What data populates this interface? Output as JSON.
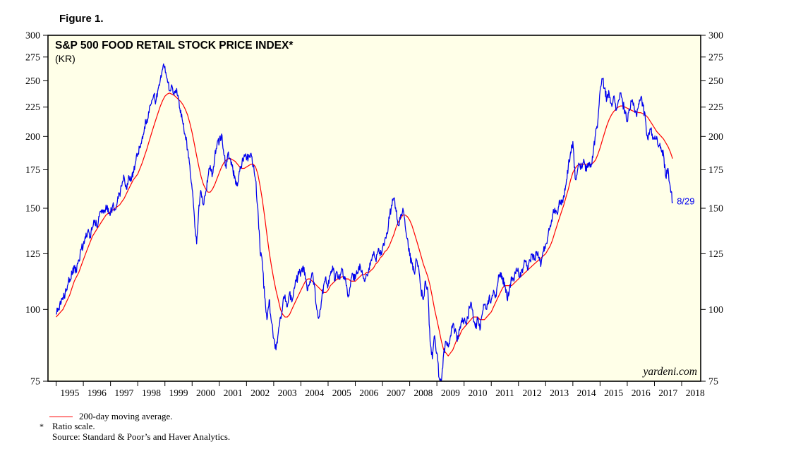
{
  "figure_label": "Figure 1.",
  "chart": {
    "title": "S&P 500 FOOD RETAIL STOCK PRICE INDEX*",
    "subtitle": "(KR)",
    "watermark": "yardeni.com",
    "annotation_label": "8/29",
    "colors": {
      "price": "#0000ee",
      "moving_average": "#ff0000",
      "plot_background": "#ffffe8",
      "frame": "#000000",
      "annotation": "#0000ee",
      "tick_text": "#000000"
    }
  },
  "chart_data": {
    "type": "line",
    "title": "S&P 500 FOOD RETAIL STOCK PRICE INDEX* (KR)",
    "y_scale": "log",
    "y_scale_note": "Ratio scale",
    "ylim": [
      75,
      300
    ],
    "y_ticks": [
      75,
      100,
      125,
      150,
      175,
      200,
      225,
      250,
      275,
      300
    ],
    "x_ticks": [
      1995,
      1996,
      1997,
      1998,
      1999,
      2000,
      2001,
      2002,
      2003,
      2004,
      2005,
      2006,
      2007,
      2008,
      2009,
      2010,
      2011,
      2012,
      2013,
      2014,
      2015,
      2016,
      2017,
      2018
    ],
    "x_start": 1995.0,
    "x_end": 2017.667,
    "points_per_year": 12,
    "last_point_label": "8/29",
    "last_point_value": 154,
    "grid": false,
    "legend_position": "below-left",
    "series": [
      {
        "name": "S&P 500 Food Retail stock price index (daily close)",
        "color": "#0000ee",
        "start_year": 1995,
        "values_by_year": [
          [
            98,
            100,
            102,
            104,
            107,
            110,
            113,
            115,
            118,
            116,
            122,
            127
          ],
          [
            130,
            133,
            137,
            134,
            139,
            143,
            139,
            145,
            149,
            147,
            152,
            150
          ],
          [
            147,
            152,
            149,
            154,
            159,
            164,
            170,
            162,
            171,
            167,
            174,
            180
          ],
          [
            186,
            192,
            200,
            208,
            214,
            220,
            228,
            236,
            230,
            242,
            252,
            262
          ],
          [
            265,
            252,
            240,
            246,
            236,
            240,
            232,
            222,
            210,
            200,
            190,
            178
          ],
          [
            162,
            145,
            130,
            152,
            160,
            152,
            160,
            170,
            178,
            172,
            184,
            194
          ],
          [
            196,
            202,
            186,
            176,
            188,
            182,
            175,
            169,
            164,
            174,
            180,
            186
          ],
          [
            182,
            186,
            187,
            178,
            168,
            150,
            126,
            120,
            105,
            96,
            104,
            95
          ],
          [
            89,
            85,
            91,
            97,
            102,
            106,
            101,
            107,
            103,
            109,
            112,
            115
          ],
          [
            116,
            119,
            113,
            108,
            112,
            116,
            110,
            100,
            97,
            103,
            110,
            114
          ],
          [
            110,
            115,
            119,
            112,
            116,
            113,
            118,
            114,
            110,
            106,
            112,
            115
          ],
          [
            113,
            116,
            120,
            117,
            112,
            115,
            118,
            122,
            125,
            122,
            126,
            124
          ],
          [
            128,
            132,
            136,
            144,
            152,
            156,
            148,
            140,
            146,
            150,
            140,
            133
          ],
          [
            124,
            120,
            116,
            122,
            118,
            108,
            104,
            112,
            108,
            88,
            82,
            90
          ],
          [
            84,
            76,
            75,
            84,
            88,
            86,
            90,
            94,
            92,
            88,
            92,
            95
          ],
          [
            96,
            94,
            99,
            103,
            97,
            93,
            96,
            92,
            98,
            102,
            100,
            105
          ],
          [
            104,
            108,
            106,
            112,
            116,
            113,
            110,
            104,
            108,
            114,
            112,
            118
          ],
          [
            116,
            114,
            118,
            121,
            117,
            122,
            125,
            122,
            126,
            123,
            120,
            126
          ],
          [
            130,
            134,
            140,
            146,
            150,
            147,
            155,
            152,
            158,
            165,
            178,
            188
          ],
          [
            196,
            169,
            174,
            179,
            176,
            181,
            174,
            180,
            177,
            188,
            202,
            212
          ],
          [
            240,
            252,
            243,
            232,
            238,
            228,
            235,
            222,
            230,
            238,
            228,
            222
          ],
          [
            212,
            222,
            230,
            226,
            218,
            228,
            234,
            226,
            214,
            198,
            206,
            202
          ],
          [
            198,
            200,
            193,
            189,
            186,
            170,
            176,
            163,
            154
          ]
        ]
      },
      {
        "name": "200-day moving average",
        "color": "#ff0000",
        "start_year": 1995,
        "values_by_year": [
          [
            97,
            98,
            99,
            100,
            102,
            104,
            106,
            109,
            112,
            114,
            116,
            119
          ],
          [
            122,
            125,
            128,
            131,
            134,
            136,
            138,
            140,
            142,
            144,
            146,
            147
          ],
          [
            148,
            149,
            150,
            151,
            152,
            154,
            156,
            159,
            162,
            165,
            168,
            170
          ],
          [
            172,
            176,
            180,
            185,
            190,
            196,
            202,
            208,
            214,
            220,
            226,
            231
          ],
          [
            235,
            237,
            238,
            237,
            236,
            234,
            232,
            230,
            227,
            223,
            218,
            211
          ],
          [
            203,
            194,
            185,
            177,
            170,
            165,
            162,
            160,
            160,
            162,
            165,
            169
          ],
          [
            173,
            177,
            180,
            182,
            183,
            183,
            182,
            181,
            179,
            177,
            176,
            176
          ],
          [
            177,
            178,
            179,
            179,
            177,
            172,
            164,
            155,
            145,
            135,
            126,
            119
          ],
          [
            113,
            108,
            104,
            100,
            98,
            97,
            97,
            98,
            100,
            102,
            104,
            106
          ],
          [
            108,
            110,
            112,
            113,
            113,
            112,
            111,
            110,
            109,
            108,
            107,
            107
          ],
          [
            108,
            110,
            111,
            112,
            113,
            113,
            114,
            114,
            113,
            113,
            112,
            112
          ],
          [
            112,
            113,
            114,
            115,
            115,
            116,
            116,
            117,
            118,
            120,
            121,
            123
          ],
          [
            124,
            126,
            127,
            129,
            132,
            135,
            139,
            142,
            144,
            146,
            146,
            145
          ],
          [
            143,
            140,
            136,
            132,
            128,
            124,
            120,
            117,
            114,
            110,
            105,
            100
          ],
          [
            96,
            92,
            88,
            85,
            84,
            83,
            84,
            85,
            87,
            89,
            90,
            92
          ],
          [
            93,
            94,
            95,
            96,
            97,
            97,
            97,
            96,
            96,
            96,
            97,
            98
          ],
          [
            99,
            101,
            103,
            105,
            107,
            109,
            110,
            110,
            110,
            110,
            111,
            112
          ],
          [
            113,
            114,
            115,
            116,
            117,
            118,
            119,
            120,
            121,
            122,
            123,
            124
          ],
          [
            125,
            127,
            129,
            132,
            136,
            140,
            144,
            148,
            152,
            157,
            162,
            168
          ],
          [
            173,
            176,
            178,
            179,
            179,
            179,
            179,
            179,
            179,
            180,
            182,
            186
          ],
          [
            191,
            197,
            203,
            209,
            214,
            218,
            221,
            223,
            225,
            226,
            226,
            225
          ],
          [
            224,
            223,
            222,
            221,
            221,
            220,
            220,
            219,
            218,
            216,
            213,
            210
          ],
          [
            207,
            204,
            202,
            200,
            198,
            195,
            192,
            188,
            183
          ]
        ]
      }
    ],
    "render_hints": {
      "noise_amplitude": 0.018,
      "subpoints_per_step": 5,
      "plot_background": "#ffffe8"
    }
  },
  "legend": {
    "ma_label": "200-day moving average."
  },
  "footnotes": {
    "asterisk": "*",
    "ratio_note": "Ratio scale.",
    "source": "Source: Standard & Poor’s and Haver Analytics."
  }
}
